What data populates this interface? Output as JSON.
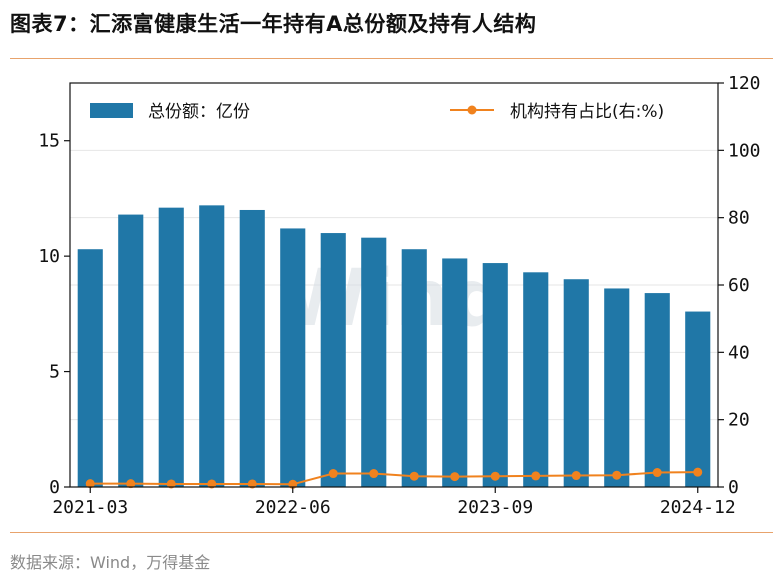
{
  "header": {
    "title": "图表7：汇添富健康生活一年持有A总份额及持有人结构"
  },
  "footer": {
    "source": "数据来源：Wind，万得基金"
  },
  "watermark": "Wind",
  "colors": {
    "bar": "#2077a7",
    "line": "#f0821e",
    "rule": "#e8a36c"
  },
  "chart_data": {
    "type": "bar",
    "categories": [
      "2021-03",
      "2021-06",
      "2021-09",
      "2021-12",
      "2022-03",
      "2022-06",
      "2022-09",
      "2022-12",
      "2023-03",
      "2023-06",
      "2023-09",
      "2023-12",
      "2024-03",
      "2024-06",
      "2024-09",
      "2024-12"
    ],
    "x_tick_labels": [
      "2021-03",
      "2022-06",
      "2023-09",
      "2024-12"
    ],
    "series": [
      {
        "name": "总份额：亿份",
        "type": "bar",
        "axis": "left",
        "values": [
          10.3,
          11.8,
          12.1,
          12.2,
          12.0,
          11.2,
          11.0,
          10.8,
          10.3,
          9.9,
          9.7,
          9.3,
          9.0,
          8.6,
          8.4,
          7.6
        ]
      },
      {
        "name": "机构持有占比(右:%)",
        "type": "line",
        "axis": "right",
        "values": [
          1.0,
          1.0,
          0.9,
          0.9,
          0.9,
          0.8,
          4.0,
          4.0,
          3.2,
          3.1,
          3.2,
          3.3,
          3.4,
          3.5,
          4.3,
          4.4
        ]
      }
    ],
    "y_left": {
      "lim": [
        0,
        17.5
      ],
      "ticks": [
        0,
        5,
        10,
        15
      ]
    },
    "y_right": {
      "lim": [
        0,
        120
      ],
      "ticks": [
        0,
        20,
        40,
        60,
        80,
        100,
        120
      ]
    },
    "grid": true,
    "legend": [
      "top-left",
      "top-right"
    ]
  }
}
